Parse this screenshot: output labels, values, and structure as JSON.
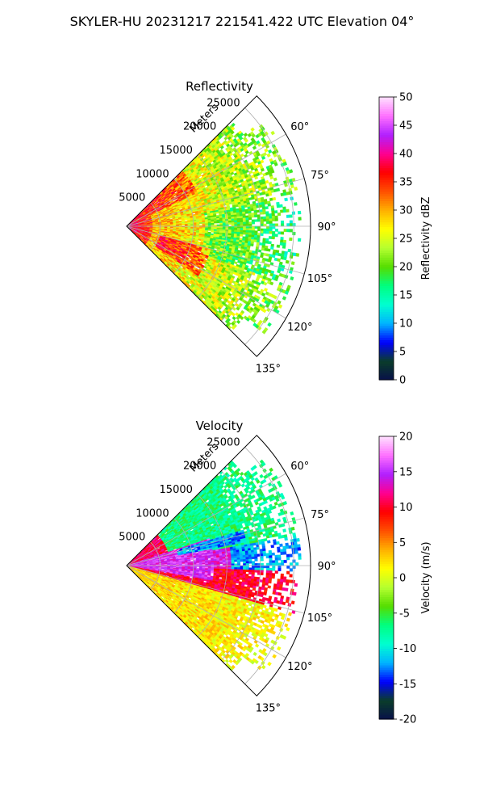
{
  "figure": {
    "suptitle": "SKYLER-HU  20231217  221541.422 UTC Elevation 04°"
  },
  "chart_data": [
    {
      "type": "heatmap",
      "projection": "polar-sector",
      "title": "Reflectivity",
      "radial_label": "Meters",
      "radial_ticks": [
        5000,
        10000,
        15000,
        20000,
        25000
      ],
      "radial_tick_labels": [
        "5000",
        "10000",
        "15000",
        "20000",
        "25000"
      ],
      "r_max": 27500,
      "theta_range_deg": [
        45,
        135
      ],
      "azimuth_ticks_deg": [
        60,
        75,
        90,
        105,
        120,
        135
      ],
      "azimuth_tick_labels": [
        "60°",
        "75°",
        "90°",
        "105°",
        "120°",
        "135°"
      ],
      "grid": true,
      "colorbar": {
        "label": "Reflectivity dBZ",
        "min": 0,
        "max": 50,
        "ticks": [
          0,
          5,
          10,
          15,
          20,
          25,
          30,
          35,
          40,
          45,
          50
        ],
        "tick_labels": [
          "0",
          "5",
          "10",
          "15",
          "20",
          "25",
          "30",
          "35",
          "40",
          "45",
          "50"
        ]
      },
      "colors": [
        "#08104a",
        "#0a3d2a",
        "#0000ff",
        "#00b4ff",
        "#00ffd0",
        "#00ff80",
        "#55dd00",
        "#b5ff30",
        "#ffff00",
        "#ffb000",
        "#ff5000",
        "#ff0000",
        "#ff0090",
        "#b020ff",
        "#ff70ff",
        "#ffe0ff"
      ],
      "field_levels_dbz": {
        "near_range_max": 40,
        "near_range_band_max": 34,
        "typical": 25,
        "far_range": 22
      }
    },
    {
      "type": "heatmap",
      "projection": "polar-sector",
      "title": "Velocity",
      "radial_label": "Meters",
      "radial_ticks": [
        5000,
        10000,
        15000,
        20000,
        25000
      ],
      "radial_tick_labels": [
        "5000",
        "10000",
        "15000",
        "20000",
        "25000"
      ],
      "r_max": 27500,
      "theta_range_deg": [
        45,
        135
      ],
      "azimuth_ticks_deg": [
        60,
        75,
        90,
        105,
        120,
        135
      ],
      "azimuth_tick_labels": [
        "60°",
        "75°",
        "90°",
        "105°",
        "120°",
        "135°"
      ],
      "grid": true,
      "colorbar": {
        "label": "Velocity (m/s)",
        "min": -20,
        "max": 20,
        "ticks": [
          -20,
          -15,
          -10,
          -5,
          0,
          5,
          10,
          15,
          20
        ],
        "tick_labels": [
          "-20",
          "-15",
          "-10",
          "-5",
          "0",
          "5",
          "10",
          "15",
          "20"
        ]
      },
      "colors": [
        "#08104a",
        "#0a3d2a",
        "#0000ff",
        "#00b4ff",
        "#00ffd0",
        "#00ff80",
        "#55dd00",
        "#b5ff30",
        "#ffff00",
        "#ffb000",
        "#ff5000",
        "#ff0000",
        "#ff0090",
        "#b020ff",
        "#ff70ff",
        "#ffe0ff"
      ],
      "field_levels_ms": {
        "north_sector": -7,
        "inbound_band": -12,
        "near_range": 15,
        "center": 10,
        "south_sector": 1
      }
    }
  ]
}
